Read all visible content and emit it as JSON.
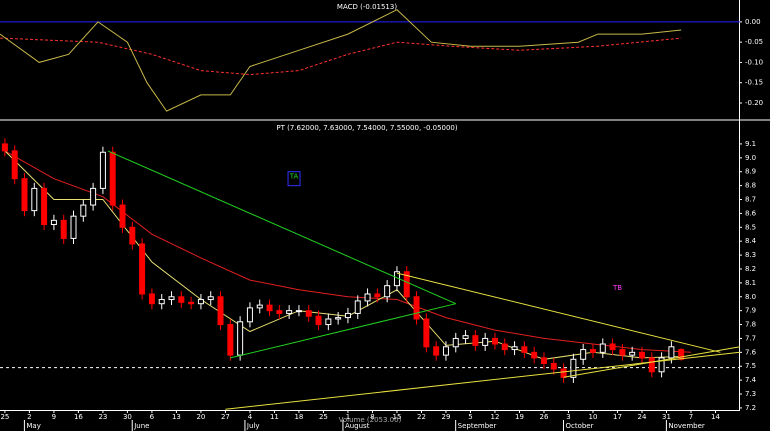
{
  "chart_data": [
    {
      "type": "line",
      "title": "MACD (-0.01513)",
      "xlim": [
        -1,
        150
      ],
      "ylim": [
        -0.237,
        0.054
      ],
      "yticks": [
        {
          "value": 0,
          "label": "0.00"
        },
        {
          "value": -0.05,
          "label": "-0.05"
        },
        {
          "value": -0.1,
          "label": "-0.10"
        },
        {
          "value": -0.15,
          "label": "-0.15"
        },
        {
          "value": -0.2,
          "label": "-0.20"
        }
      ],
      "hline": {
        "value": 0,
        "color": "#2020ff",
        "dashed": false
      },
      "series": [
        {
          "color": "#ff3030",
          "dashed": true,
          "x": [
            -1,
            19,
            30,
            40,
            50,
            60,
            70,
            80,
            91,
            105,
            121,
            138
          ],
          "values": [
            -0.04,
            -0.05,
            -0.08,
            -0.12,
            -0.13,
            -0.12,
            -0.08,
            -0.05,
            -0.06,
            -0.07,
            -0.06,
            -0.04
          ]
        },
        {
          "color": "#c8b848",
          "dashed": false,
          "x": [
            -1,
            7,
            13,
            19,
            25,
            29,
            33,
            40,
            46,
            50,
            60,
            70,
            80,
            87,
            95,
            105,
            117,
            121,
            130,
            138
          ],
          "values": [
            -0.03,
            -0.1,
            -0.08,
            0.0,
            -0.05,
            -0.15,
            -0.22,
            -0.18,
            -0.18,
            -0.11,
            -0.07,
            -0.03,
            0.03,
            -0.05,
            -0.06,
            -0.06,
            -0.05,
            -0.03,
            -0.03,
            -0.02
          ]
        }
      ]
    },
    {
      "type": "candlestick",
      "title": "PT (7.62000, 7.63000, 7.54000, 7.55000, -0.05000)",
      "volume_label": "Volume (2053.00)",
      "xlim": [
        -1,
        150
      ],
      "ylim": [
        7.185,
        9.265
      ],
      "yticks": [
        9.1,
        {
          "value": 9.0,
          "label": "9.0"
        },
        8.9,
        8.8,
        8.7,
        8.6,
        8.5,
        8.4,
        8.3,
        8.2,
        8.1,
        {
          "value": 8.0,
          "label": "8.0"
        },
        7.9,
        7.8,
        7.7,
        7.6,
        7.5,
        7.4,
        7.3,
        7.2
      ],
      "xticks": [
        {
          "value": 0,
          "label": "25"
        },
        {
          "value": 5,
          "label": "2"
        },
        {
          "value": 10,
          "label": "9"
        },
        {
          "value": 15,
          "label": "16"
        },
        {
          "value": 20,
          "label": "23"
        },
        {
          "value": 25,
          "label": "30"
        },
        {
          "value": 30,
          "label": "6"
        },
        {
          "value": 35,
          "label": "13"
        },
        {
          "value": 40,
          "label": "20"
        },
        {
          "value": 45,
          "label": "27"
        },
        {
          "value": 50,
          "label": "4"
        },
        {
          "value": 55,
          "label": "11"
        },
        {
          "value": 60,
          "label": "18"
        },
        {
          "value": 65,
          "label": "25"
        },
        {
          "value": 70,
          "label": "1"
        },
        {
          "value": 75,
          "label": "8"
        },
        {
          "value": 80,
          "label": "15"
        },
        {
          "value": 85,
          "label": "22"
        },
        {
          "value": 90,
          "label": "29"
        },
        {
          "value": 95,
          "label": "5"
        },
        {
          "value": 100,
          "label": "12"
        },
        {
          "value": 105,
          "label": "19"
        },
        {
          "value": 110,
          "label": "26"
        },
        {
          "value": 115,
          "label": "3"
        },
        {
          "value": 120,
          "label": "10"
        },
        {
          "value": 125,
          "label": "17"
        },
        {
          "value": 130,
          "label": "24"
        },
        {
          "value": 135,
          "label": "31"
        },
        {
          "value": 140,
          "label": "7"
        },
        {
          "value": 145,
          "label": "14"
        }
      ],
      "month_ticks": [
        {
          "value": 5,
          "label": "May"
        },
        {
          "value": 27,
          "label": "June"
        },
        {
          "value": 50,
          "label": "July"
        },
        {
          "value": 70,
          "label": "August"
        },
        {
          "value": 93,
          "label": "September"
        },
        {
          "value": 115,
          "label": "October"
        },
        {
          "value": 136,
          "label": "November"
        }
      ],
      "up_color": "#ffffff",
      "down_color": "#ff0000",
      "x": [
        0,
        2,
        4,
        6,
        8,
        10,
        12,
        14,
        16,
        18,
        20,
        22,
        24,
        26,
        28,
        30,
        32,
        34,
        36,
        38,
        40,
        42,
        44,
        46,
        48,
        50,
        52,
        54,
        56,
        58,
        60,
        62,
        64,
        66,
        68,
        70,
        72,
        74,
        76,
        78,
        80,
        82,
        84,
        86,
        88,
        90,
        92,
        94,
        96,
        98,
        100,
        102,
        104,
        106,
        108,
        110,
        112,
        114,
        116,
        118,
        120,
        122,
        124,
        126,
        128,
        130,
        132,
        134,
        136,
        138
      ],
      "open": [
        9.1,
        9.05,
        8.85,
        8.62,
        8.78,
        8.52,
        8.55,
        8.42,
        8.58,
        8.66,
        8.78,
        9.04,
        8.66,
        8.5,
        8.38,
        8.02,
        7.95,
        7.98,
        8.0,
        7.96,
        7.95,
        7.98,
        8.0,
        7.8,
        7.58,
        7.82,
        7.92,
        7.94,
        7.9,
        7.88,
        7.9,
        7.9,
        7.86,
        7.8,
        7.84,
        7.85,
        7.88,
        7.97,
        8.02,
        8.0,
        8.08,
        8.18,
        8.0,
        7.84,
        7.64,
        7.58,
        7.64,
        7.7,
        7.72,
        7.65,
        7.7,
        7.66,
        7.62,
        7.64,
        7.6,
        7.56,
        7.52,
        7.48,
        7.42,
        7.55,
        7.62,
        7.6,
        7.66,
        7.62,
        7.58,
        7.6,
        7.56,
        7.46,
        7.56,
        7.62
      ],
      "high": [
        9.14,
        9.09,
        8.89,
        8.82,
        8.82,
        8.59,
        8.59,
        8.62,
        8.7,
        8.82,
        9.08,
        9.08,
        8.7,
        8.54,
        8.42,
        8.06,
        8.02,
        8.04,
        8.04,
        8.0,
        8.02,
        8.04,
        8.04,
        7.84,
        7.86,
        7.96,
        7.98,
        7.98,
        7.94,
        7.94,
        7.94,
        7.94,
        7.9,
        7.88,
        7.89,
        7.92,
        8.01,
        8.06,
        8.06,
        8.12,
        8.22,
        8.22,
        8.04,
        7.88,
        7.68,
        7.68,
        7.74,
        7.76,
        7.76,
        7.74,
        7.74,
        7.7,
        7.68,
        7.68,
        7.64,
        7.6,
        7.56,
        7.52,
        7.59,
        7.66,
        7.66,
        7.7,
        7.7,
        7.66,
        7.64,
        7.64,
        7.6,
        7.6,
        7.68,
        7.63
      ],
      "low": [
        9.01,
        8.81,
        8.58,
        8.58,
        8.48,
        8.48,
        8.38,
        8.38,
        8.54,
        8.62,
        8.74,
        8.62,
        8.46,
        8.34,
        7.98,
        7.91,
        7.91,
        7.94,
        7.92,
        7.91,
        7.91,
        7.94,
        7.76,
        7.54,
        7.54,
        7.78,
        7.88,
        7.86,
        7.84,
        7.84,
        7.86,
        7.82,
        7.76,
        7.76,
        7.8,
        7.81,
        7.84,
        7.93,
        7.96,
        7.96,
        8.04,
        7.96,
        7.8,
        7.6,
        7.54,
        7.54,
        7.6,
        7.66,
        7.61,
        7.61,
        7.62,
        7.58,
        7.58,
        7.56,
        7.52,
        7.48,
        7.44,
        7.38,
        7.38,
        7.51,
        7.56,
        7.56,
        7.58,
        7.54,
        7.54,
        7.52,
        7.42,
        7.42,
        7.52,
        7.54
      ],
      "close": [
        9.05,
        8.85,
        8.62,
        8.78,
        8.52,
        8.55,
        8.42,
        8.58,
        8.66,
        8.78,
        9.04,
        8.66,
        8.5,
        8.38,
        8.02,
        7.95,
        7.98,
        8.0,
        7.96,
        7.95,
        7.98,
        8.0,
        7.8,
        7.58,
        7.82,
        7.92,
        7.94,
        7.9,
        7.88,
        7.9,
        7.9,
        7.86,
        7.8,
        7.84,
        7.85,
        7.88,
        7.97,
        8.02,
        8.0,
        8.08,
        8.18,
        8.0,
        7.84,
        7.64,
        7.58,
        7.64,
        7.7,
        7.72,
        7.65,
        7.7,
        7.66,
        7.62,
        7.64,
        7.6,
        7.56,
        7.52,
        7.48,
        7.42,
        7.55,
        7.62,
        7.6,
        7.66,
        7.62,
        7.58,
        7.6,
        7.56,
        7.46,
        7.56,
        7.64,
        7.55
      ],
      "series": [
        {
          "color": "#e02020",
          "dashed": false,
          "x": [
            0,
            10,
            20,
            30,
            40,
            50,
            60,
            70,
            80,
            90,
            100,
            110,
            120,
            130,
            140
          ],
          "values": [
            9.05,
            8.85,
            8.72,
            8.45,
            8.28,
            8.12,
            8.05,
            8.0,
            7.98,
            7.85,
            7.76,
            7.7,
            7.66,
            7.62,
            7.6
          ]
        },
        {
          "color": "#e8e070",
          "dashed": false,
          "x": [
            0,
            10,
            20,
            30,
            40,
            50,
            60,
            70,
            80,
            90,
            100,
            110,
            120,
            130,
            138
          ],
          "values": [
            9.05,
            8.7,
            8.7,
            8.25,
            7.98,
            7.75,
            7.9,
            7.86,
            8.05,
            7.65,
            7.68,
            7.55,
            7.6,
            7.56,
            7.57
          ]
        }
      ],
      "trendlines": [
        {
          "color": "#20d020",
          "x": [
            21,
            92
          ],
          "values": [
            9.05,
            7.95
          ]
        },
        {
          "color": "#20d020",
          "x": [
            46,
            92
          ],
          "values": [
            7.56,
            7.95
          ]
        },
        {
          "color": "#e8e040",
          "x": [
            80,
            146
          ],
          "values": [
            8.17,
            7.6
          ]
        },
        {
          "color": "#e8e040",
          "x": [
            45,
            150
          ],
          "values": [
            7.19,
            7.6
          ]
        },
        {
          "color": "#e8e040",
          "x": [
            114,
            150
          ],
          "values": [
            7.42,
            7.64
          ]
        }
      ],
      "hline": {
        "value": 7.49,
        "color": "#ffffff",
        "dashed": true
      },
      "annotations": [
        {
          "text": "TA",
          "x": 59,
          "y": 8.85,
          "color": "#20e020"
        },
        {
          "text": "TB",
          "x": 125,
          "y": 8.05,
          "color": "#ff40ff"
        }
      ]
    }
  ]
}
